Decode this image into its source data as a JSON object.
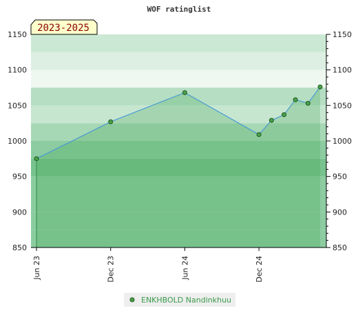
{
  "chart_data": {
    "type": "area",
    "title": "WOF ratinglist",
    "period_label": "2023-2025",
    "ylim": [
      850,
      1150
    ],
    "yticks": [
      850,
      900,
      950,
      1000,
      1050,
      1100,
      1150
    ],
    "x_axis": {
      "range": [
        "2023-06-01",
        "2025-05-01"
      ],
      "ticks": [
        {
          "date": "2023-06-01",
          "label": "Jun 23"
        },
        {
          "date": "2023-12-01",
          "label": "Dec 23"
        },
        {
          "date": "2024-06-01",
          "label": "Jun 24"
        },
        {
          "date": "2024-12-01",
          "label": "Dec 24"
        }
      ]
    },
    "series": [
      {
        "name": "ENKHBOLD Nandinkhuu",
        "color": "#2e9a3e",
        "line_color": "#4a9ad4",
        "points": [
          {
            "date": "2023-06-01",
            "value": 975
          },
          {
            "date": "2023-12-01",
            "value": 1027
          },
          {
            "date": "2024-06-01",
            "value": 1068
          },
          {
            "date": "2024-12-01",
            "value": 1009
          },
          {
            "date": "2025-01-01",
            "value": 1029
          },
          {
            "date": "2025-02-01",
            "value": 1037
          },
          {
            "date": "2025-03-01",
            "value": 1058
          },
          {
            "date": "2025-04-01",
            "value": 1053
          },
          {
            "date": "2025-05-01",
            "value": 1076
          }
        ]
      }
    ],
    "grid": true,
    "legend_position": "bottom-center"
  }
}
